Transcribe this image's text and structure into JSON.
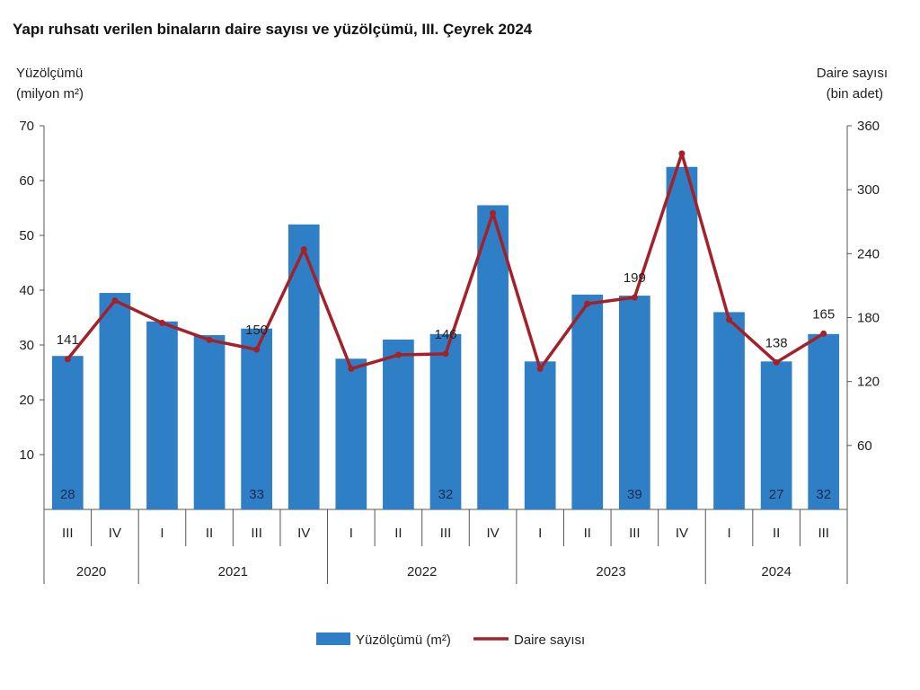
{
  "colors": {
    "bar": "#2e7fc6",
    "line": "#a3222a",
    "axis": "#555555"
  },
  "chart_data": {
    "type": "bar",
    "title": "Yapı ruhsatı verilen binaların daire sayısı ve yüzölçümü, III. Çeyrek 2024",
    "y_left_title": [
      "Yüzölçümü",
      "(milyon m²)"
    ],
    "y_right_title": [
      "Daire sayısı",
      "(bin adet)"
    ],
    "y_left_ticks": [
      10,
      20,
      30,
      40,
      50,
      60,
      70
    ],
    "y_right_ticks": [
      60,
      120,
      180,
      240,
      300,
      360
    ],
    "ylim_left": [
      0,
      70
    ],
    "ylim_right": [
      0,
      360
    ],
    "categories": [
      "III",
      "IV",
      "I",
      "II",
      "III",
      "IV",
      "I",
      "II",
      "III",
      "IV",
      "I",
      "II",
      "III",
      "IV",
      "I",
      "II",
      "III"
    ],
    "years": [
      {
        "label": "2020",
        "span": 2
      },
      {
        "label": "2021",
        "span": 4
      },
      {
        "label": "2022",
        "span": 4
      },
      {
        "label": "2023",
        "span": 4
      },
      {
        "label": "2024",
        "span": 3
      }
    ],
    "series": [
      {
        "name": "Yüzölçümü (m²)",
        "type": "bar",
        "axis": "left",
        "values": [
          28,
          39.5,
          34.3,
          31.8,
          33,
          52,
          27.5,
          31,
          32,
          55.5,
          27,
          39.2,
          39,
          62.5,
          36,
          27,
          32
        ]
      },
      {
        "name": "Daire sayısı",
        "type": "line",
        "axis": "right",
        "values": [
          141,
          196,
          175,
          159,
          150,
          244,
          132,
          145,
          146,
          278,
          132,
          193,
          199,
          334,
          178,
          138,
          165
        ]
      }
    ],
    "bar_data_labels": [
      {
        "index": 0,
        "text": "28"
      },
      {
        "index": 4,
        "text": "33"
      },
      {
        "index": 8,
        "text": "32"
      },
      {
        "index": 12,
        "text": "39"
      },
      {
        "index": 15,
        "text": "27"
      },
      {
        "index": 16,
        "text": "32"
      }
    ],
    "line_data_labels": [
      {
        "index": 0,
        "text": "141"
      },
      {
        "index": 4,
        "text": "150"
      },
      {
        "index": 8,
        "text": "146"
      },
      {
        "index": 12,
        "text": "199"
      },
      {
        "index": 15,
        "text": "138"
      },
      {
        "index": 16,
        "text": "165"
      }
    ],
    "legend": {
      "position": "bottom",
      "items": [
        "Yüzölçümü (m²)",
        "Daire sayısı"
      ]
    }
  }
}
